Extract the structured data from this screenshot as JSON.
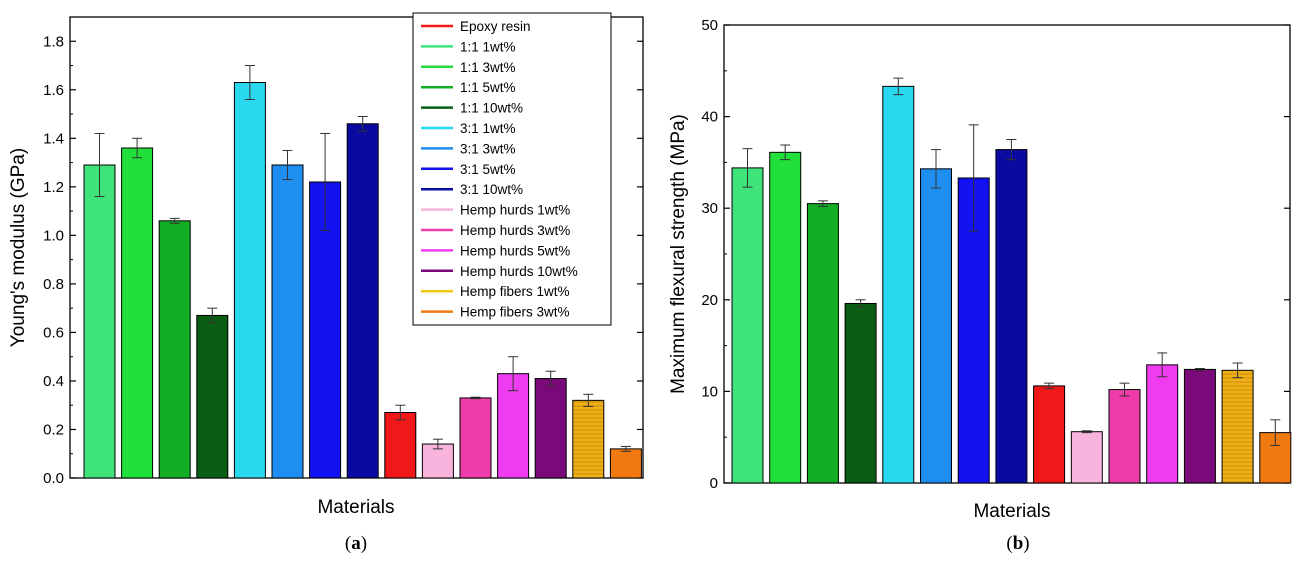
{
  "chart_data": [
    {
      "type": "bar",
      "panel_label": "a",
      "xlabel": "Materials",
      "ylabel": "Young's modulus (GPa)",
      "ylim": [
        0.0,
        1.9
      ],
      "yticks": [
        "0.0",
        "0.2",
        "0.4",
        "0.6",
        "0.8",
        "1.0",
        "1.2",
        "1.4",
        "1.6",
        "1.8"
      ],
      "legend_position": "top-right",
      "series": [
        {
          "name": "1:1 1wt%",
          "value": 1.29,
          "error": 0.13,
          "color": "#3ee37a"
        },
        {
          "name": "1:1 3wt%",
          "value": 1.36,
          "error": 0.04,
          "color": "#22e03c"
        },
        {
          "name": "1:1 5wt%",
          "value": 1.06,
          "error": 0.01,
          "color": "#12ae24"
        },
        {
          "name": "1:1 10wt%",
          "value": 0.67,
          "error": 0.03,
          "color": "#0a5e14"
        },
        {
          "name": "3:1 1wt%",
          "value": 1.63,
          "error": 0.07,
          "color": "#2ad8f0"
        },
        {
          "name": "3:1 3wt%",
          "value": 1.29,
          "error": 0.06,
          "color": "#1e8ff0"
        },
        {
          "name": "3:1 5wt%",
          "value": 1.22,
          "error": 0.2,
          "color": "#1212f0"
        },
        {
          "name": "3:1 10wt%",
          "value": 1.46,
          "error": 0.03,
          "color": "#0a0aa0"
        },
        {
          "name": "Epoxy resin",
          "value": 0.27,
          "error": 0.03,
          "color": "#f01818"
        },
        {
          "name": "Hemp hurds 1wt%",
          "value": 0.14,
          "error": 0.02,
          "color": "#f8b4dc"
        },
        {
          "name": "Hemp hurds 3wt%",
          "value": 0.33,
          "error": 0.003,
          "color": "#f03caa"
        },
        {
          "name": "Hemp hurds 5wt%",
          "value": 0.43,
          "error": 0.07,
          "color": "#f03cf0"
        },
        {
          "name": "Hemp hurds 10wt%",
          "value": 0.41,
          "error": 0.03,
          "color": "#7a0a7a"
        },
        {
          "name": "Hemp fibers 1wt%",
          "value": 0.32,
          "error": 0.025,
          "color": "#f0b018",
          "hatched": true
        },
        {
          "name": "Hemp fibers 3wt%",
          "value": 0.12,
          "error": 0.01,
          "color": "#f07a10"
        }
      ],
      "legend": [
        {
          "label": "Epoxy resin",
          "color": "#f01818"
        },
        {
          "label": "1:1 1wt%",
          "color": "#3ee37a"
        },
        {
          "label": "1:1 3wt%",
          "color": "#22e03c"
        },
        {
          "label": "1:1 5wt%",
          "color": "#12ae24"
        },
        {
          "label": "1:1 10wt%",
          "color": "#0a5e14"
        },
        {
          "label": "3:1 1wt%",
          "color": "#2ad8f0"
        },
        {
          "label": "3:1 3wt%",
          "color": "#1e8ff0"
        },
        {
          "label": "3:1 5wt%",
          "color": "#1212f0"
        },
        {
          "label": "3:1 10wt%",
          "color": "#0a0aa0"
        },
        {
          "label": "Hemp hurds 1wt%",
          "color": "#f8b4dc"
        },
        {
          "label": "Hemp hurds 3wt%",
          "color": "#f03caa"
        },
        {
          "label": "Hemp hurds 5wt%",
          "color": "#f03cf0"
        },
        {
          "label": "Hemp hurds 10wt%",
          "color": "#7a0a7a"
        },
        {
          "label": "Hemp fibers 1wt%",
          "color": "#f0c814"
        },
        {
          "label": "Hemp fibers 3wt%",
          "color": "#f07a10"
        }
      ]
    },
    {
      "type": "bar",
      "panel_label": "b",
      "xlabel": "Materials",
      "ylabel": "Maximum flexural strength (MPa)",
      "ylim": [
        0,
        50
      ],
      "yticks": [
        "0",
        "10",
        "20",
        "30",
        "40",
        "50"
      ],
      "series": [
        {
          "name": "1:1 1wt%",
          "value": 34.4,
          "error": 2.1,
          "color": "#3ee37a"
        },
        {
          "name": "1:1 3wt%",
          "value": 36.1,
          "error": 0.8,
          "color": "#22e03c"
        },
        {
          "name": "1:1 5wt%",
          "value": 30.5,
          "error": 0.3,
          "color": "#12ae24"
        },
        {
          "name": "1:1 10wt%",
          "value": 19.6,
          "error": 0.4,
          "color": "#0a5e14"
        },
        {
          "name": "3:1 1wt%",
          "value": 43.3,
          "error": 0.9,
          "color": "#2ad8f0"
        },
        {
          "name": "3:1 3wt%",
          "value": 34.3,
          "error": 2.1,
          "color": "#1e8ff0"
        },
        {
          "name": "3:1 5wt%",
          "value": 33.3,
          "error": 5.8,
          "color": "#1212f0"
        },
        {
          "name": "3:1 10wt%",
          "value": 36.4,
          "error": 1.1,
          "color": "#0a0aa0"
        },
        {
          "name": "Epoxy resin",
          "value": 10.6,
          "error": 0.3,
          "color": "#f01818"
        },
        {
          "name": "Hemp hurds 1wt%",
          "value": 5.6,
          "error": 0.1,
          "color": "#f8b4dc"
        },
        {
          "name": "Hemp hurds 3wt%",
          "value": 10.2,
          "error": 0.7,
          "color": "#f03caa"
        },
        {
          "name": "Hemp hurds 5wt%",
          "value": 12.9,
          "error": 1.3,
          "color": "#f03cf0"
        },
        {
          "name": "Hemp hurds 10wt%",
          "value": 12.4,
          "error": 0.1,
          "color": "#7a0a7a"
        },
        {
          "name": "Hemp fibers 1wt%",
          "value": 12.3,
          "error": 0.8,
          "color": "#f0b018",
          "hatched": true
        },
        {
          "name": "Hemp fibers 3wt%",
          "value": 5.5,
          "error": 1.4,
          "color": "#f07a10"
        }
      ]
    }
  ]
}
